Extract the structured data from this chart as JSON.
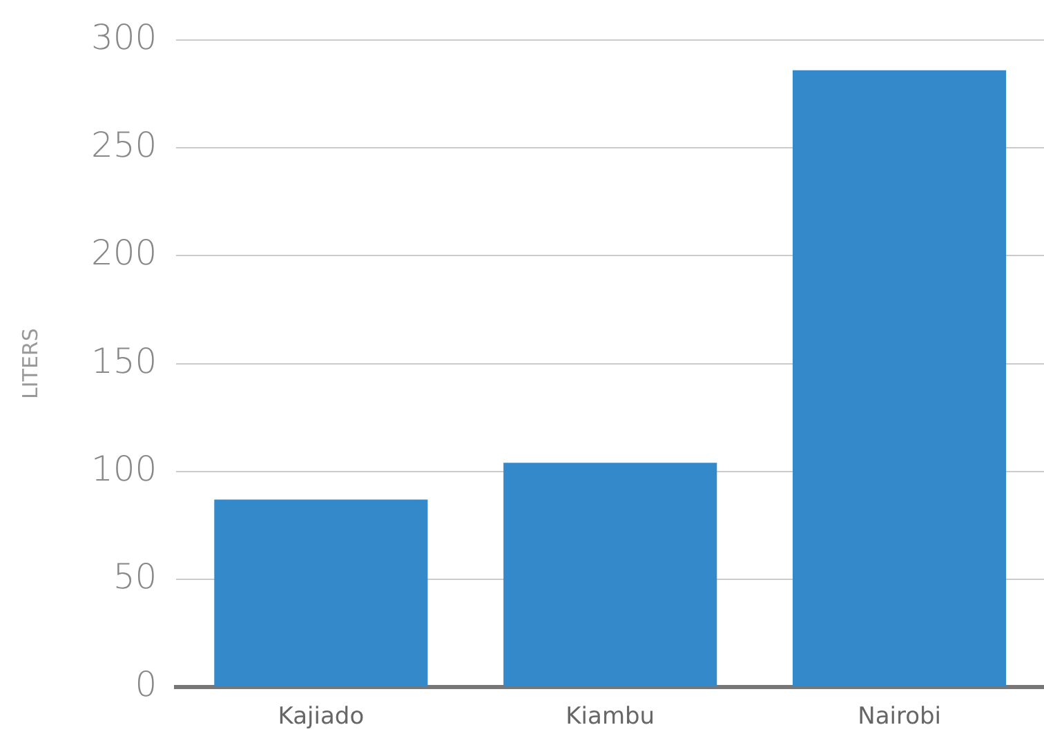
{
  "chart_data": {
    "type": "bar",
    "ylabel": "LITERS",
    "categories": [
      "Kajiado",
      "Kiambu",
      "Nairobi"
    ],
    "values": [
      87,
      104,
      286
    ],
    "color": "#3389c9",
    "ylim": [
      0,
      300
    ],
    "yticks": [
      0,
      50,
      100,
      150,
      200,
      250,
      300
    ],
    "grid": "y",
    "legend": false
  }
}
